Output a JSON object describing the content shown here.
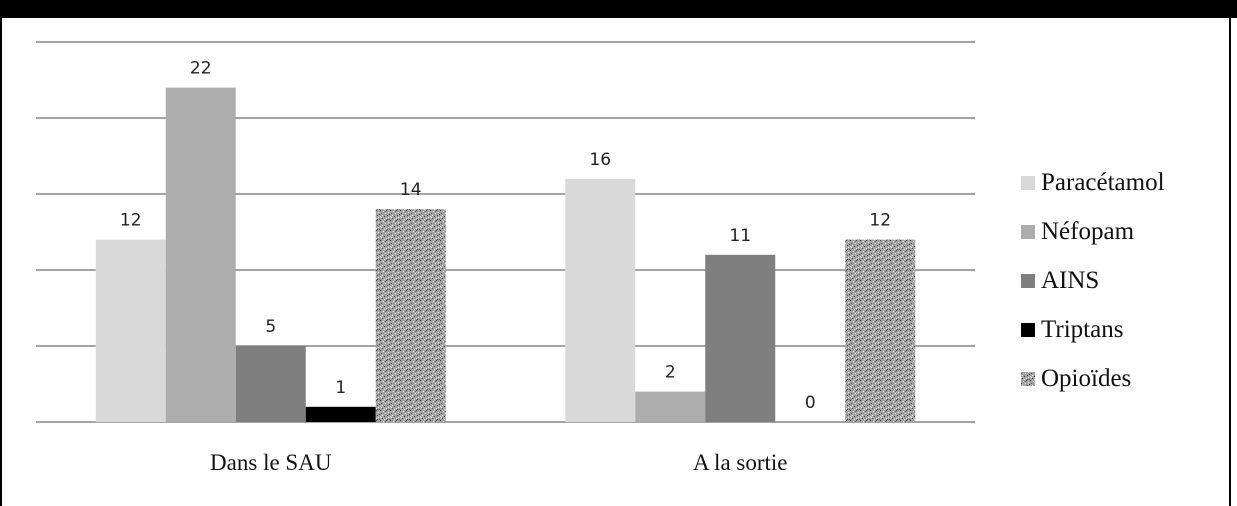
{
  "chart_data": {
    "type": "bar",
    "categories": [
      "Dans le SAU",
      "A la sortie"
    ],
    "series": [
      {
        "name": "Paracétamol",
        "values": [
          12,
          16
        ],
        "color": "#d9d9d9"
      },
      {
        "name": "Néfopam",
        "values": [
          22,
          2
        ],
        "color": "#adadad"
      },
      {
        "name": "AINS",
        "values": [
          5,
          11
        ],
        "color": "#7f7f7f"
      },
      {
        "name": "Triptans",
        "values": [
          1,
          0
        ],
        "color": "#000000"
      },
      {
        "name": "Opioïdes",
        "values": [
          14,
          12
        ],
        "color": "#9a9a9a",
        "pattern": "speckle"
      }
    ],
    "ylim": [
      0,
      25
    ],
    "y_gridlines": [
      0,
      5,
      10,
      15,
      20,
      25
    ],
    "y_tick_labels_shown": false,
    "data_labels": true,
    "grid": true,
    "legend_position": "right",
    "title": "",
    "xlabel": "",
    "ylabel": ""
  }
}
